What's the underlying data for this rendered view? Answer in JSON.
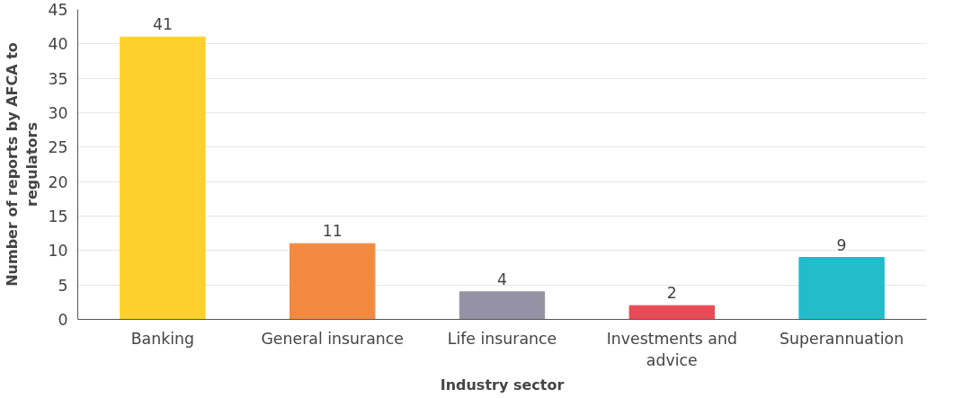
{
  "chart_data": {
    "type": "bar",
    "xlabel": "Industry sector",
    "ylabel": "Number of reports by AFCA to regulators",
    "categories": [
      "Banking",
      "General insurance",
      "Life insurance",
      "Investments and advice",
      "Superannuation"
    ],
    "values": [
      41,
      11,
      4,
      2,
      9
    ],
    "colors": [
      "#fdd02b",
      "#f38a42",
      "#9692a6",
      "#e84b55",
      "#22bccb"
    ],
    "ylim": [
      0,
      45
    ],
    "yticks": [
      0,
      5,
      10,
      15,
      20,
      25,
      30,
      35,
      40,
      45
    ],
    "grid": "y",
    "data_labels": true
  }
}
